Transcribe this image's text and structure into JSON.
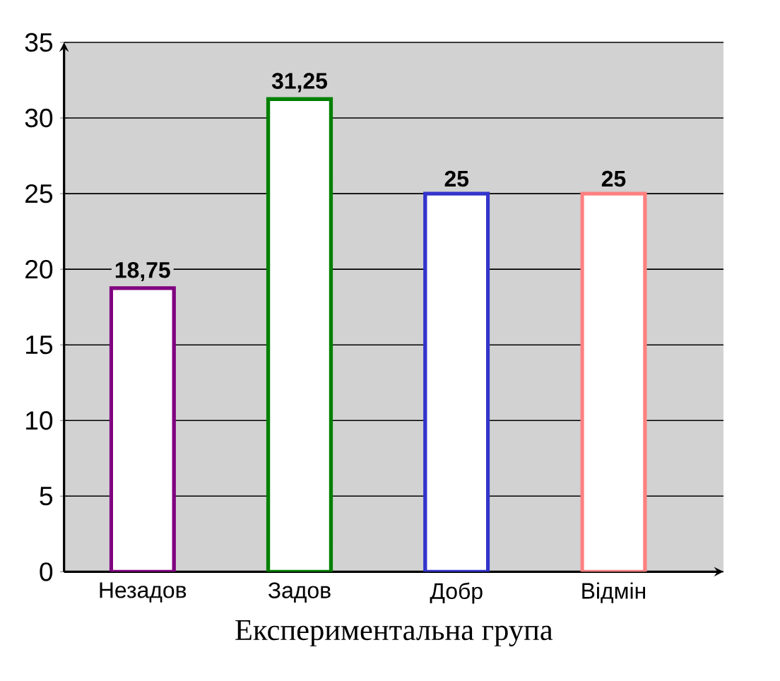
{
  "chart_data": {
    "type": "bar",
    "xlabel": "Експериментальна група",
    "categories": [
      "Незадов",
      "Задов",
      "Добр",
      "Відмін"
    ],
    "values": [
      18.75,
      31.25,
      25,
      25
    ],
    "colors": [
      "#800080",
      "#008000",
      "#3333cc",
      "#ff8080"
    ],
    "value_labels": [
      "18,75",
      "31,25",
      "25",
      "25"
    ],
    "ylim": [
      0,
      35
    ],
    "yticks": [
      0,
      5,
      10,
      15,
      20,
      25,
      30,
      35
    ],
    "grid": "y"
  }
}
